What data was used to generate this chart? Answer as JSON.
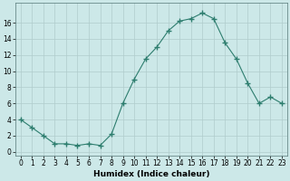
{
  "x": [
    0,
    1,
    2,
    3,
    4,
    5,
    6,
    7,
    8,
    9,
    10,
    11,
    12,
    13,
    14,
    15,
    16,
    17,
    18,
    19,
    20,
    21,
    22,
    23
  ],
  "y": [
    4,
    3,
    2,
    1,
    1,
    0.8,
    1,
    0.8,
    2.2,
    6,
    9,
    11.5,
    13,
    15,
    16.2,
    16.5,
    17.2,
    16.5,
    13.5,
    11.5,
    8.5,
    6,
    6.8,
    6
  ],
  "line_color": "#2d7d6e",
  "marker_color": "#2d7d6e",
  "bg_color": "#cce8e8",
  "grid_color": "#b0cccc",
  "xlabel": "Humidex (Indice chaleur)",
  "xlim": [
    -0.5,
    23.5
  ],
  "ylim": [
    -0.5,
    18.5
  ],
  "yticks": [
    0,
    2,
    4,
    6,
    8,
    10,
    12,
    14,
    16
  ],
  "xticks": [
    0,
    1,
    2,
    3,
    4,
    5,
    6,
    7,
    8,
    9,
    10,
    11,
    12,
    13,
    14,
    15,
    16,
    17,
    18,
    19,
    20,
    21,
    22,
    23
  ],
  "xlabel_fontsize": 6.5,
  "tick_fontsize": 5.5
}
